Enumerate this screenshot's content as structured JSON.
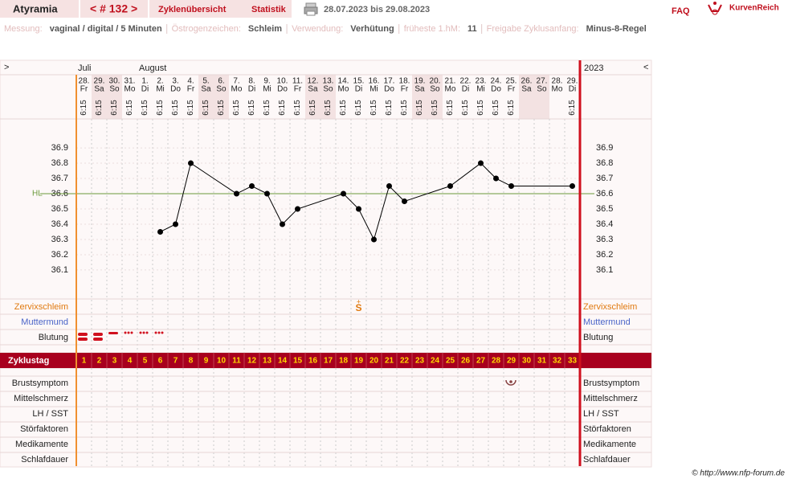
{
  "header": {
    "user": "Atyramia",
    "cycle_nav": "< # 132 >",
    "tabs": [
      "Zyklenübersicht",
      "Statistik"
    ],
    "date_range": "28.07.2023 bis 29.08.2023",
    "faq": "FAQ",
    "brand": "KurvenReich"
  },
  "info": [
    {
      "label": "Messung:",
      "value": "vaginal / digital / 5 Minuten"
    },
    {
      "label": "Östrogenzeichen:",
      "value": "Schleim"
    },
    {
      "label": "Verwendung:",
      "value": "Verhütung"
    },
    {
      "label": "früheste 1.hM:",
      "value": "11"
    },
    {
      "label": "Freigabe Zyklusanfang:",
      "value": "Minus-8-Regel"
    }
  ],
  "chart": {
    "nav_left": ">",
    "nav_right": "<",
    "year": "2023",
    "months": [
      {
        "label": "Juli",
        "day": 1
      },
      {
        "label": "August",
        "day": 5
      }
    ],
    "days": [
      {
        "date": "28.",
        "weekday": "Fr",
        "time": "6:15"
      },
      {
        "date": "29.",
        "weekday": "Sa",
        "time": "6:15"
      },
      {
        "date": "30.",
        "weekday": "So",
        "time": "6:15"
      },
      {
        "date": "31.",
        "weekday": "Mo",
        "time": "6:15"
      },
      {
        "date": "1.",
        "weekday": "Di",
        "time": "6:15"
      },
      {
        "date": "2.",
        "weekday": "Mi",
        "time": "6:15"
      },
      {
        "date": "3.",
        "weekday": "Do",
        "time": "6:15"
      },
      {
        "date": "4.",
        "weekday": "Fr",
        "time": "6:15"
      },
      {
        "date": "5.",
        "weekday": "Sa",
        "time": "6:15"
      },
      {
        "date": "6.",
        "weekday": "So",
        "time": "6:15"
      },
      {
        "date": "7.",
        "weekday": "Mo",
        "time": "6:15"
      },
      {
        "date": "8.",
        "weekday": "Di",
        "time": "6:15"
      },
      {
        "date": "9.",
        "weekday": "Mi",
        "time": "6:15"
      },
      {
        "date": "10.",
        "weekday": "Do",
        "time": "6:15"
      },
      {
        "date": "11.",
        "weekday": "Fr",
        "time": "6:15"
      },
      {
        "date": "12.",
        "weekday": "Sa",
        "time": "6:15"
      },
      {
        "date": "13.",
        "weekday": "So",
        "time": "6:15"
      },
      {
        "date": "14.",
        "weekday": "Mo",
        "time": "6:15"
      },
      {
        "date": "15.",
        "weekday": "Di",
        "time": "6:15"
      },
      {
        "date": "16.",
        "weekday": "Mi",
        "time": "6:15"
      },
      {
        "date": "17.",
        "weekday": "Do",
        "time": "6:15"
      },
      {
        "date": "18.",
        "weekday": "Fr",
        "time": "6:15"
      },
      {
        "date": "19.",
        "weekday": "Sa",
        "time": "6:15"
      },
      {
        "date": "20.",
        "weekday": "So",
        "time": "6:15"
      },
      {
        "date": "21.",
        "weekday": "Mo",
        "time": "6:15"
      },
      {
        "date": "22.",
        "weekday": "Di",
        "time": "6:15"
      },
      {
        "date": "23.",
        "weekday": "Mi",
        "time": "6:15"
      },
      {
        "date": "24.",
        "weekday": "Do",
        "time": "6:15"
      },
      {
        "date": "25.",
        "weekday": "Fr",
        "time": "6:15"
      },
      {
        "date": "26.",
        "weekday": "Sa",
        "time": null
      },
      {
        "date": "27.",
        "weekday": "So",
        "time": null
      },
      {
        "date": "28.",
        "weekday": "Mo",
        "time": null
      },
      {
        "date": "29.",
        "weekday": "Di",
        "time": "6:15"
      }
    ],
    "cycle_day_label": "Zyklustag",
    "cycle_days": [
      1,
      2,
      3,
      4,
      5,
      6,
      7,
      8,
      9,
      10,
      11,
      12,
      13,
      14,
      15,
      16,
      17,
      18,
      19,
      20,
      21,
      22,
      23,
      24,
      25,
      26,
      27,
      28,
      29,
      30,
      31,
      32,
      33
    ],
    "temperature": {
      "days": [
        6,
        7,
        8,
        11,
        12,
        13,
        14,
        15,
        18,
        19,
        20,
        21,
        22,
        25,
        27,
        28,
        29,
        33
      ],
      "values": [
        36.35,
        36.4,
        36.8,
        36.6,
        36.65,
        36.6,
        36.4,
        36.5,
        36.6,
        36.5,
        36.3,
        36.65,
        36.55,
        36.65,
        36.8,
        36.7,
        36.65,
        36.65
      ]
    },
    "ylim": [
      35.91,
      37.09
    ],
    "yticks": [
      36.1,
      36.2,
      36.3,
      36.4,
      36.5,
      36.6,
      36.7,
      36.8,
      36.9
    ],
    "cover_line": {
      "label": "HL",
      "value": 36.6
    },
    "rows_top": [
      "Zervixschleim",
      "Muttermund",
      "Blutung"
    ],
    "rows_bottom": [
      "Brustsymptom",
      "Mittelschmerz",
      "LH / SST",
      "Störfaktoren",
      "Medikamente",
      "Schlafdauer"
    ],
    "cervix": [
      {
        "day": 19,
        "label": "S",
        "sup": "+"
      }
    ]
  },
  "footer": "© http://www.nfp-forum.de"
}
